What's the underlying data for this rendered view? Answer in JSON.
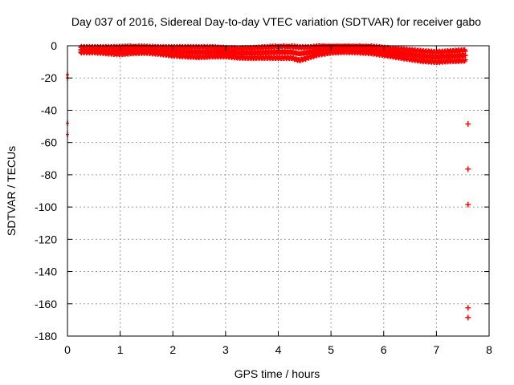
{
  "chart_data": {
    "type": "scatter",
    "title": "Day 037 of 2016, Sidereal Day-to-day VTEC variation (SDTVAR) for receiver gabo",
    "xlabel": "GPS time / hours",
    "ylabel": "SDTVAR / TECUs",
    "xlim": [
      0,
      8
    ],
    "ylim": [
      -180,
      0
    ],
    "xticks": [
      "0",
      "1",
      "2",
      "3",
      "4",
      "5",
      "6",
      "7",
      "8"
    ],
    "yticks": [
      "0",
      "-20",
      "-40",
      "-60",
      "-80",
      "-100",
      "-120",
      "-140",
      "-160",
      "-180"
    ],
    "grid": true,
    "marker": "+",
    "color": "#ff0000",
    "band": {
      "x": [
        0.25,
        0.5,
        0.75,
        1.0,
        1.25,
        1.5,
        1.75,
        2.0,
        2.25,
        2.5,
        2.75,
        3.0,
        3.25,
        3.5,
        3.75,
        4.0,
        4.25,
        4.4,
        4.6,
        4.75,
        5.0,
        5.25,
        5.5,
        5.75,
        6.0,
        6.25,
        6.5,
        6.75,
        7.0,
        7.25,
        7.55
      ],
      "y": [
        -2.5,
        -2.5,
        -2.8,
        -3.0,
        -2.5,
        -2.5,
        -3.0,
        -3.5,
        -3.8,
        -4.0,
        -3.8,
        -4.0,
        -4.5,
        -4.5,
        -4.2,
        -4.0,
        -4.0,
        -5.0,
        -4.0,
        -3.0,
        -2.0,
        -1.8,
        -2.0,
        -2.5,
        -3.5,
        -4.5,
        -5.5,
        -6.5,
        -7.0,
        -6.5,
        -6.0
      ],
      "spread": [
        1.5,
        1.5,
        1.8,
        2.2,
        2.0,
        1.8,
        2.0,
        2.5,
        2.8,
        3.0,
        2.8,
        2.5,
        2.8,
        3.0,
        3.2,
        3.5,
        3.5,
        4.0,
        3.0,
        2.5,
        2.2,
        2.0,
        2.0,
        2.0,
        2.2,
        2.5,
        2.8,
        3.0,
        3.0,
        3.0,
        3.2
      ]
    },
    "outliers": [
      {
        "x": 0.0,
        "y": -18
      },
      {
        "x": 0.0,
        "y": -20
      },
      {
        "x": 0.0,
        "y": -48
      },
      {
        "x": 0.0,
        "y": -55
      },
      {
        "x": 7.6,
        "y": -48.5
      },
      {
        "x": 7.6,
        "y": -76.5
      },
      {
        "x": 7.6,
        "y": -98.5
      },
      {
        "x": 7.6,
        "y": -162.5
      },
      {
        "x": 7.6,
        "y": -168.5
      }
    ]
  }
}
